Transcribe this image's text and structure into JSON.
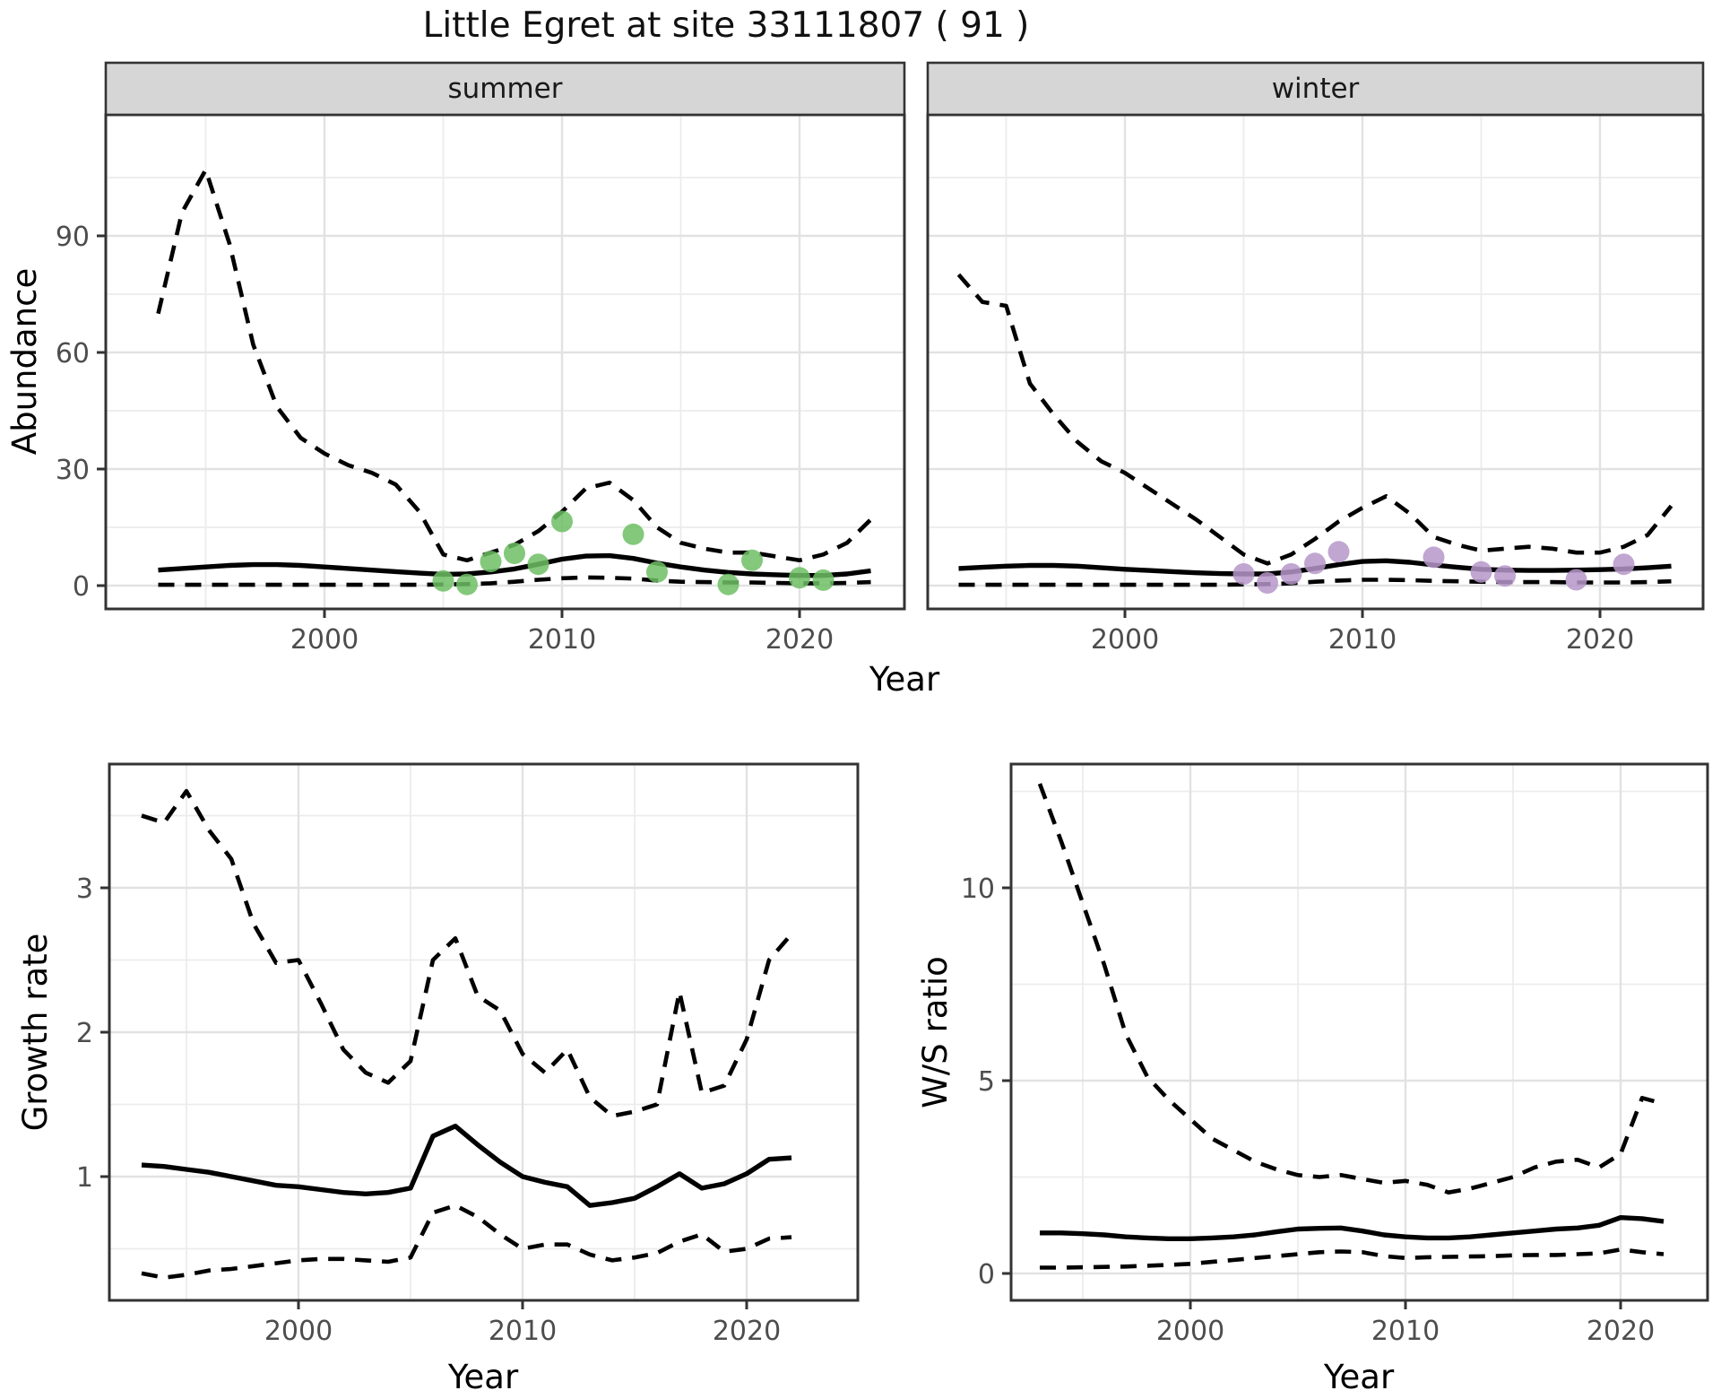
{
  "title": "Little Egret at site 33111807 ( 91 )",
  "colors": {
    "background": "#ffffff",
    "line": "#000000",
    "grid_major": "#e2e2e2",
    "grid_minor": "#ececec",
    "strip_bg": "#d6d6d6",
    "panel_border": "#333333",
    "axis_text": "#4d4d4d",
    "point_summer": "#6dbe64",
    "point_winter": "#b596c8"
  },
  "chart_data": [
    {
      "type": "line",
      "ylabel": "Abundance",
      "xlabel": "Year",
      "xticks": [
        2000,
        2010,
        2020
      ],
      "xticks_minor": [
        1995,
        2005,
        2015
      ],
      "yticks": [
        0,
        30,
        60,
        90
      ],
      "yticks_minor": [
        15,
        45,
        75,
        105
      ],
      "xlim": [
        1991,
        2024.5
      ],
      "ylim": [
        -6,
        121
      ],
      "grid": true,
      "legend": "none",
      "facets": [
        {
          "label": "summer",
          "point_color": "#6dbe64",
          "series": [
            {
              "name": "upper_ci",
              "style": "dashed",
              "x0": 1993,
              "values": [
                70,
                96,
                107,
                88,
                62,
                46,
                38,
                34,
                31,
                29,
                26,
                19,
                8,
                6.5,
                8.5,
                10.5,
                14,
                19,
                25,
                26.5,
                22,
                15,
                11,
                9.5,
                8.5,
                8.5,
                7.5,
                6.5,
                8,
                11,
                17
              ]
            },
            {
              "name": "median",
              "style": "solid",
              "x0": 1993,
              "values": [
                4.0,
                4.4,
                4.8,
                5.2,
                5.4,
                5.4,
                5.2,
                4.8,
                4.4,
                4.0,
                3.6,
                3.2,
                2.9,
                3.0,
                3.5,
                4.3,
                5.5,
                6.8,
                7.6,
                7.7,
                7.0,
                5.8,
                4.8,
                4.0,
                3.4,
                3.0,
                2.8,
                2.6,
                2.6,
                3.0,
                3.8
              ]
            },
            {
              "name": "lower_ci",
              "style": "dashed",
              "x0": 1993,
              "values": [
                0.2,
                0.2,
                0.2,
                0.2,
                0.2,
                0.2,
                0.2,
                0.2,
                0.2,
                0.2,
                0.2,
                0.2,
                0.3,
                0.4,
                0.6,
                1.0,
                1.5,
                1.9,
                2.1,
                2.0,
                1.8,
                1.3,
                1.0,
                0.9,
                0.8,
                0.8,
                0.7,
                0.6,
                0.6,
                0.7,
                0.9
              ]
            }
          ],
          "observations": [
            [
              2005,
              1.2
            ],
            [
              2006,
              0.3
            ],
            [
              2007,
              6.2
            ],
            [
              2008,
              8.3
            ],
            [
              2009,
              5.5
            ],
            [
              2010,
              16.5
            ],
            [
              2013,
              13.2
            ],
            [
              2014,
              3.5
            ],
            [
              2017,
              0.3
            ],
            [
              2018,
              6.5
            ],
            [
              2020,
              2.0
            ],
            [
              2021,
              1.4
            ]
          ]
        },
        {
          "label": "winter",
          "point_color": "#b596c8",
          "series": [
            {
              "name": "upper_ci",
              "style": "dashed",
              "x0": 1993,
              "values": [
                80,
                73,
                72,
                52,
                44,
                37,
                32,
                29,
                25,
                21,
                17,
                12.5,
                8,
                5.7,
                8,
                12,
                16.5,
                20,
                23,
                18.5,
                12.5,
                10.5,
                9,
                9.5,
                10,
                9.5,
                8.5,
                8.5,
                10,
                13,
                20.5
              ]
            },
            {
              "name": "median",
              "style": "solid",
              "x0": 1993,
              "values": [
                4.4,
                4.7,
                5.0,
                5.2,
                5.2,
                5.0,
                4.6,
                4.2,
                3.9,
                3.6,
                3.3,
                3.1,
                3.0,
                3.0,
                3.5,
                4.4,
                5.4,
                6.2,
                6.4,
                6.0,
                5.3,
                4.7,
                4.2,
                4.0,
                3.9,
                3.9,
                4.0,
                4.1,
                4.3,
                4.6,
                5.0
              ]
            },
            {
              "name": "lower_ci",
              "style": "dashed",
              "x0": 1993,
              "values": [
                0.2,
                0.2,
                0.2,
                0.2,
                0.2,
                0.2,
                0.2,
                0.2,
                0.2,
                0.2,
                0.2,
                0.2,
                0.3,
                0.4,
                0.6,
                1.0,
                1.3,
                1.5,
                1.5,
                1.4,
                1.2,
                1.1,
                1.0,
                0.9,
                0.9,
                0.9,
                0.8,
                0.8,
                0.8,
                0.9,
                1.1
              ]
            }
          ],
          "observations": [
            [
              2005,
              3.0
            ],
            [
              2006,
              0.7
            ],
            [
              2007,
              3.0
            ],
            [
              2008,
              5.7
            ],
            [
              2009,
              8.7
            ],
            [
              2013,
              7.3
            ],
            [
              2015,
              3.5
            ],
            [
              2016,
              2.5
            ],
            [
              2019,
              1.5
            ],
            [
              2021,
              5.5
            ]
          ]
        }
      ]
    },
    {
      "type": "line",
      "ylabel": "Growth rate",
      "xlabel": "Year",
      "xticks": [
        2000,
        2010,
        2020
      ],
      "xticks_minor": [
        1995,
        2005,
        2015
      ],
      "yticks": [
        1,
        2,
        3
      ],
      "yticks_minor": [
        0.5,
        1.5,
        2.5,
        3.5
      ],
      "xlim": [
        1991.5,
        2025
      ],
      "ylim": [
        0.15,
        3.85
      ],
      "grid": true,
      "legend": "none",
      "series": [
        {
          "name": "upper_ci",
          "style": "dashed",
          "x0": 1993,
          "values": [
            3.5,
            3.45,
            3.67,
            3.4,
            3.2,
            2.75,
            2.48,
            2.5,
            2.2,
            1.88,
            1.72,
            1.65,
            1.8,
            2.5,
            2.65,
            2.25,
            2.15,
            1.85,
            1.72,
            1.88,
            1.55,
            1.42,
            1.45,
            1.5,
            2.28,
            1.58,
            1.63,
            1.95,
            2.5,
            2.68
          ]
        },
        {
          "name": "median",
          "style": "solid",
          "x0": 1993,
          "values": [
            1.08,
            1.07,
            1.05,
            1.03,
            1.0,
            0.97,
            0.94,
            0.93,
            0.91,
            0.89,
            0.88,
            0.89,
            0.92,
            1.28,
            1.35,
            1.22,
            1.1,
            1.0,
            0.96,
            0.93,
            0.8,
            0.82,
            0.85,
            0.93,
            1.02,
            0.92,
            0.95,
            1.02,
            1.12,
            1.13
          ]
        },
        {
          "name": "lower_ci",
          "style": "dashed",
          "x0": 1993,
          "values": [
            0.33,
            0.3,
            0.32,
            0.35,
            0.36,
            0.38,
            0.4,
            0.42,
            0.43,
            0.43,
            0.42,
            0.41,
            0.44,
            0.75,
            0.8,
            0.72,
            0.6,
            0.5,
            0.53,
            0.53,
            0.46,
            0.42,
            0.44,
            0.47,
            0.55,
            0.6,
            0.48,
            0.5,
            0.57,
            0.58
          ]
        }
      ]
    },
    {
      "type": "line",
      "ylabel": "W/S ratio",
      "xlabel": "Year",
      "xticks": [
        2000,
        2010,
        2020
      ],
      "xticks_minor": [
        1995,
        2005,
        2015
      ],
      "yticks": [
        0,
        5,
        10
      ],
      "yticks_minor": [
        2.5,
        7.5,
        12.5
      ],
      "xlim": [
        1991.5,
        2025
      ],
      "ylim": [
        -0.5,
        13.2
      ],
      "grid": true,
      "legend": "none",
      "series": [
        {
          "name": "upper_ci",
          "style": "dashed",
          "x0": 1993,
          "values": [
            12.7,
            11.2,
            9.6,
            8.0,
            6.2,
            5.1,
            4.5,
            4.0,
            3.5,
            3.2,
            2.9,
            2.7,
            2.55,
            2.5,
            2.55,
            2.45,
            2.35,
            2.4,
            2.3,
            2.1,
            2.2,
            2.35,
            2.5,
            2.75,
            2.9,
            2.95,
            2.75,
            3.1,
            4.55,
            4.4
          ]
        },
        {
          "name": "median",
          "style": "solid",
          "x0": 1993,
          "values": [
            1.05,
            1.05,
            1.03,
            1.0,
            0.95,
            0.92,
            0.9,
            0.9,
            0.92,
            0.95,
            1.0,
            1.08,
            1.15,
            1.17,
            1.18,
            1.1,
            1.0,
            0.95,
            0.92,
            0.92,
            0.95,
            1.0,
            1.05,
            1.1,
            1.15,
            1.18,
            1.25,
            1.45,
            1.42,
            1.35
          ]
        },
        {
          "name": "lower_ci",
          "style": "dashed",
          "x0": 1993,
          "values": [
            0.15,
            0.15,
            0.16,
            0.17,
            0.18,
            0.2,
            0.22,
            0.25,
            0.3,
            0.35,
            0.4,
            0.45,
            0.5,
            0.55,
            0.57,
            0.55,
            0.45,
            0.4,
            0.42,
            0.43,
            0.44,
            0.45,
            0.47,
            0.48,
            0.48,
            0.5,
            0.52,
            0.62,
            0.55,
            0.5
          ]
        }
      ]
    }
  ]
}
